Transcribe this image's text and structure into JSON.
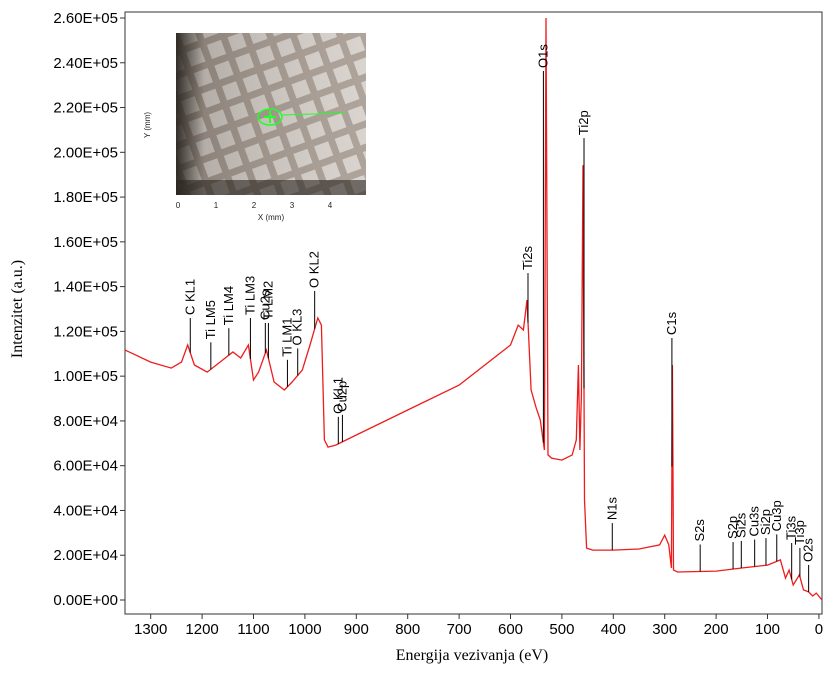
{
  "chart_data": {
    "type": "line",
    "xlabel": "Energija vezivanja (eV)",
    "ylabel": "Intenzitet (a.u.)",
    "xlim": [
      1350,
      -6
    ],
    "ylim": [
      0,
      260000
    ],
    "xticks": [
      1300,
      1200,
      1100,
      1000,
      900,
      800,
      700,
      600,
      500,
      400,
      300,
      200,
      100,
      0
    ],
    "yticks": [
      {
        "value": 0,
        "label": "0.00E+00"
      },
      {
        "value": 20000,
        "label": "2.00E+04"
      },
      {
        "value": 40000,
        "label": "4.00E+04"
      },
      {
        "value": 60000,
        "label": "6.00E+04"
      },
      {
        "value": 80000,
        "label": "8.00E+04"
      },
      {
        "value": 100000,
        "label": "1.00E+05"
      },
      {
        "value": 120000,
        "label": "1.20E+05"
      },
      {
        "value": 140000,
        "label": "1.40E+05"
      },
      {
        "value": 160000,
        "label": "1.60E+05"
      },
      {
        "value": 180000,
        "label": "1.80E+05"
      },
      {
        "value": 200000,
        "label": "2.00E+05"
      },
      {
        "value": 220000,
        "label": "2.20E+05"
      },
      {
        "value": 240000,
        "label": "2.40E+05"
      },
      {
        "value": 260000,
        "label": "2.60E+05"
      }
    ],
    "x": [
      1350,
      1300,
      1260,
      1240,
      1228,
      1215,
      1190,
      1160,
      1140,
      1125,
      1110,
      1100,
      1090,
      1075,
      1060,
      1040,
      1025,
      1005,
      990,
      975,
      968,
      962,
      955,
      940,
      900,
      800,
      700,
      600,
      585,
      575,
      568,
      560,
      550,
      542,
      534,
      531,
      527,
      520,
      500,
      480,
      472,
      468,
      465,
      462,
      459,
      456,
      452,
      440,
      400,
      350,
      310,
      300,
      292,
      287,
      285,
      283,
      275,
      200,
      150,
      100,
      75,
      65,
      58,
      50,
      38,
      30,
      20,
      12,
      5,
      -6
    ],
    "series": [
      {
        "color": "#ee1c1c",
        "values": [
          111700,
          106300,
          103600,
          106300,
          113900,
          105000,
          101800,
          107200,
          110800,
          108100,
          113900,
          98300,
          101800,
          111700,
          97400,
          93800,
          97400,
          102700,
          113900,
          126000,
          122800,
          71500,
          68300,
          69200,
          73700,
          84900,
          96000,
          113900,
          122800,
          120600,
          134000,
          93800,
          85800,
          80400,
          67000,
          260000,
          64800,
          63400,
          62500,
          64800,
          71500,
          105000,
          67000,
          91600,
          194300,
          44700,
          23200,
          22300,
          22300,
          22800,
          24600,
          29000,
          24600,
          14300,
          105000,
          13400,
          12500,
          12900,
          14300,
          15600,
          17900,
          9800,
          13400,
          6700,
          11200,
          4500,
          3600,
          1800,
          3100,
          0
        ]
      }
    ],
    "annotations": [
      {
        "text": "C KL1",
        "x": 1223
      },
      {
        "text": "Ti LM5",
        "x": 1183
      },
      {
        "text": "Ti LM4",
        "x": 1148
      },
      {
        "text": "Ti LM3",
        "x": 1106
      },
      {
        "text": "Cu2s",
        "x": 1077
      },
      {
        "text": "Ti LM2",
        "x": 1071
      },
      {
        "text": "Ti LM1",
        "x": 1034
      },
      {
        "text": "O KL3",
        "x": 1014
      },
      {
        "text": "O KL2",
        "x": 981
      },
      {
        "text": "O KL1",
        "x": 935
      },
      {
        "text": "Cu2p",
        "x": 927
      },
      {
        "text": "Ti2s",
        "x": 566
      },
      {
        "text": "O1s",
        "x": 536
      },
      {
        "text": "Ti2p",
        "x": 457
      },
      {
        "text": "N1s",
        "x": 402
      },
      {
        "text": "C1s",
        "x": 286
      },
      {
        "text": "S2s",
        "x": 231
      },
      {
        "text": "S2p",
        "x": 167
      },
      {
        "text": "Si2s",
        "x": 151
      },
      {
        "text": "Cu3s",
        "x": 125
      },
      {
        "text": "Si2p",
        "x": 103
      },
      {
        "text": "Cu3p",
        "x": 82
      },
      {
        "text": "Ti3s",
        "x": 53
      },
      {
        "text": "Ti3p",
        "x": 37
      },
      {
        "text": "O2s",
        "x": 20
      }
    ],
    "inset": {
      "xticks": [
        0,
        1,
        2,
        3,
        4
      ],
      "xlabel": "X (mm)",
      "ylabel": "Y (mm)"
    }
  }
}
